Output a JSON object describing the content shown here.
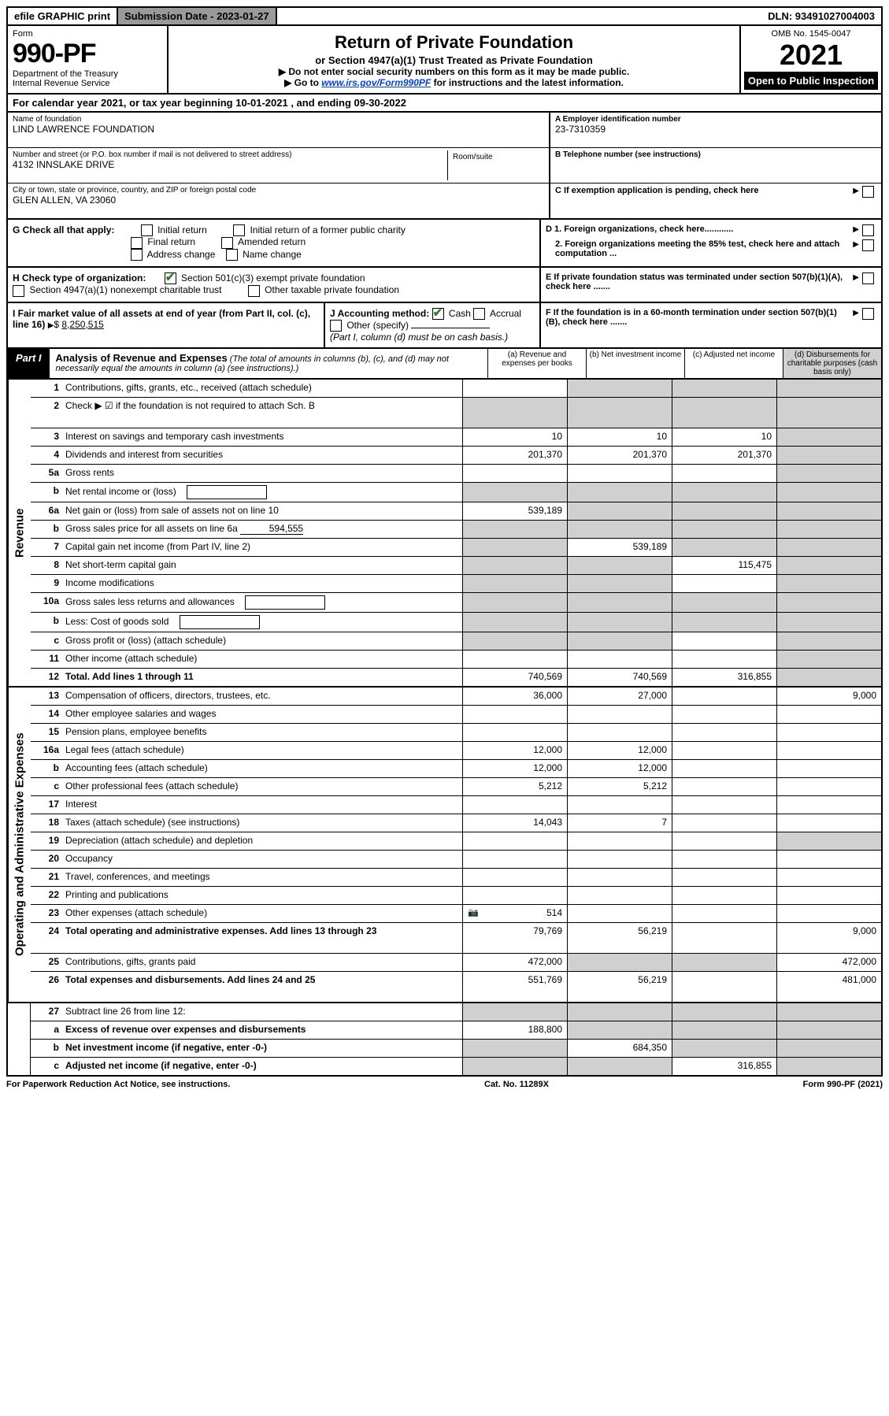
{
  "top_bar": {
    "efile": "efile GRAPHIC print",
    "submission_label": "Submission Date - 2023-01-27",
    "dln": "DLN: 93491027004003"
  },
  "header": {
    "form_word": "Form",
    "form_number": "990-PF",
    "dept": "Department of the Treasury",
    "irs": "Internal Revenue Service",
    "title": "Return of Private Foundation",
    "subtitle": "or Section 4947(a)(1) Trust Treated as Private Foundation",
    "warn": "▶ Do not enter social security numbers on this form as it may be made public.",
    "goto_prefix": "▶ Go to ",
    "goto_link": "www.irs.gov/Form990PF",
    "goto_suffix": " for instructions and the latest information.",
    "omb": "OMB No. 1545-0047",
    "year": "2021",
    "open": "Open to Public Inspection"
  },
  "calendar": "For calendar year 2021, or tax year beginning 10-01-2021               , and ending 09-30-2022",
  "info": {
    "name_label": "Name of foundation",
    "name": "LIND LAWRENCE FOUNDATION",
    "addr_label": "Number and street (or P.O. box number if mail is not delivered to street address)",
    "addr": "4132 INNSLAKE DRIVE",
    "room_label": "Room/suite",
    "city_label": "City or town, state or province, country, and ZIP or foreign postal code",
    "city": "GLEN ALLEN, VA  23060",
    "ein_label": "A Employer identification number",
    "ein": "23-7310359",
    "phone_label": "B Telephone number (see instructions)",
    "c_label": "C If exemption application is pending, check here",
    "d1": "D 1. Foreign organizations, check here............",
    "d2": "2. Foreign organizations meeting the 85% test, check here and attach computation ...",
    "e_label": "E  If private foundation status was terminated under section 507(b)(1)(A), check here .......",
    "f_label": "F  If the foundation is in a 60-month termination under section 507(b)(1)(B), check here ......."
  },
  "checks": {
    "g_label": "G Check all that apply:",
    "g_opts": [
      "Initial return",
      "Initial return of a former public charity",
      "Final return",
      "Amended return",
      "Address change",
      "Name change"
    ],
    "h_label": "H Check type of organization:",
    "h1": "Section 501(c)(3) exempt private foundation",
    "h2": "Section 4947(a)(1) nonexempt charitable trust",
    "h3": "Other taxable private foundation",
    "i_label": "I Fair market value of all assets at end of year (from Part II, col. (c), line 16)",
    "i_value": "8,250,515",
    "j_label": "J Accounting method:",
    "j_cash": "Cash",
    "j_accrual": "Accrual",
    "j_other": "Other (specify)",
    "j_note": "(Part I, column (d) must be on cash basis.)"
  },
  "part1": {
    "label": "Part I",
    "title": "Analysis of Revenue and Expenses",
    "title_note": "(The total of amounts in columns (b), (c), and (d) may not necessarily equal the amounts in column (a) (see instructions).)",
    "col_a": "(a)   Revenue and expenses per books",
    "col_b": "(b)   Net investment income",
    "col_c": "(c)   Adjusted net income",
    "col_d": "(d)   Disbursements for charitable purposes (cash basis only)"
  },
  "side_labels": {
    "revenue": "Revenue",
    "expenses": "Operating and Administrative Expenses"
  },
  "rows": [
    {
      "n": "1",
      "d": "Contributions, gifts, grants, etc., received (attach schedule)",
      "a": "",
      "b": "shaded",
      "c": "shaded",
      "dd": "shaded"
    },
    {
      "n": "2",
      "d": "Check ▶ ☑ if the foundation is not required to attach Sch. B",
      "a": "shaded",
      "b": "shaded",
      "c": "shaded",
      "dd": "shaded",
      "tall": true
    },
    {
      "n": "3",
      "d": "Interest on savings and temporary cash investments",
      "a": "10",
      "b": "10",
      "c": "10",
      "dd": "shaded"
    },
    {
      "n": "4",
      "d": "Dividends and interest from securities",
      "a": "201,370",
      "b": "201,370",
      "c": "201,370",
      "dd": "shaded"
    },
    {
      "n": "5a",
      "d": "Gross rents",
      "a": "",
      "b": "",
      "c": "",
      "dd": "shaded"
    },
    {
      "n": "b",
      "d": "Net rental income or (loss)",
      "a": "shaded",
      "b": "shaded",
      "c": "shaded",
      "dd": "shaded",
      "inline": true
    },
    {
      "n": "6a",
      "d": "Net gain or (loss) from sale of assets not on line 10",
      "a": "539,189",
      "b": "shaded",
      "c": "shaded",
      "dd": "shaded"
    },
    {
      "n": "b",
      "d": "Gross sales price for all assets on line 6a",
      "a": "shaded",
      "b": "shaded",
      "c": "shaded",
      "dd": "shaded",
      "inline_val": "594,555"
    },
    {
      "n": "7",
      "d": "Capital gain net income (from Part IV, line 2)",
      "a": "shaded",
      "b": "539,189",
      "c": "shaded",
      "dd": "shaded"
    },
    {
      "n": "8",
      "d": "Net short-term capital gain",
      "a": "shaded",
      "b": "shaded",
      "c": "115,475",
      "dd": "shaded"
    },
    {
      "n": "9",
      "d": "Income modifications",
      "a": "shaded",
      "b": "shaded",
      "c": "",
      "dd": "shaded"
    },
    {
      "n": "10a",
      "d": "Gross sales less returns and allowances",
      "a": "shaded",
      "b": "shaded",
      "c": "shaded",
      "dd": "shaded",
      "inline": true
    },
    {
      "n": "b",
      "d": "Less: Cost of goods sold",
      "a": "shaded",
      "b": "shaded",
      "c": "shaded",
      "dd": "shaded",
      "inline": true
    },
    {
      "n": "c",
      "d": "Gross profit or (loss) (attach schedule)",
      "a": "shaded",
      "b": "shaded",
      "c": "",
      "dd": "shaded"
    },
    {
      "n": "11",
      "d": "Other income (attach schedule)",
      "a": "",
      "b": "",
      "c": "",
      "dd": "shaded"
    },
    {
      "n": "12",
      "d": "Total. Add lines 1 through 11",
      "a": "740,569",
      "b": "740,569",
      "c": "316,855",
      "dd": "shaded",
      "bold": true
    }
  ],
  "exp_rows": [
    {
      "n": "13",
      "d": "Compensation of officers, directors, trustees, etc.",
      "a": "36,000",
      "b": "27,000",
      "c": "",
      "dd": "9,000"
    },
    {
      "n": "14",
      "d": "Other employee salaries and wages",
      "a": "",
      "b": "",
      "c": "",
      "dd": ""
    },
    {
      "n": "15",
      "d": "Pension plans, employee benefits",
      "a": "",
      "b": "",
      "c": "",
      "dd": ""
    },
    {
      "n": "16a",
      "d": "Legal fees (attach schedule)",
      "a": "12,000",
      "b": "12,000",
      "c": "",
      "dd": ""
    },
    {
      "n": "b",
      "d": "Accounting fees (attach schedule)",
      "a": "12,000",
      "b": "12,000",
      "c": "",
      "dd": ""
    },
    {
      "n": "c",
      "d": "Other professional fees (attach schedule)",
      "a": "5,212",
      "b": "5,212",
      "c": "",
      "dd": ""
    },
    {
      "n": "17",
      "d": "Interest",
      "a": "",
      "b": "",
      "c": "",
      "dd": ""
    },
    {
      "n": "18",
      "d": "Taxes (attach schedule) (see instructions)",
      "a": "14,043",
      "b": "7",
      "c": "",
      "dd": ""
    },
    {
      "n": "19",
      "d": "Depreciation (attach schedule) and depletion",
      "a": "",
      "b": "",
      "c": "",
      "dd": "shaded"
    },
    {
      "n": "20",
      "d": "Occupancy",
      "a": "",
      "b": "",
      "c": "",
      "dd": ""
    },
    {
      "n": "21",
      "d": "Travel, conferences, and meetings",
      "a": "",
      "b": "",
      "c": "",
      "dd": ""
    },
    {
      "n": "22",
      "d": "Printing and publications",
      "a": "",
      "b": "",
      "c": "",
      "dd": ""
    },
    {
      "n": "23",
      "d": "Other expenses (attach schedule)",
      "a": "514",
      "b": "",
      "c": "",
      "dd": "",
      "camera": true
    },
    {
      "n": "24",
      "d": "Total operating and administrative expenses. Add lines 13 through 23",
      "a": "79,769",
      "b": "56,219",
      "c": "",
      "dd": "9,000",
      "bold": true,
      "tall": true
    },
    {
      "n": "25",
      "d": "Contributions, gifts, grants paid",
      "a": "472,000",
      "b": "shaded",
      "c": "shaded",
      "dd": "472,000"
    },
    {
      "n": "26",
      "d": "Total expenses and disbursements. Add lines 24 and 25",
      "a": "551,769",
      "b": "56,219",
      "c": "",
      "dd": "481,000",
      "bold": true,
      "tall": true
    }
  ],
  "final_rows": [
    {
      "n": "27",
      "d": "Subtract line 26 from line 12:",
      "a": "shaded",
      "b": "shaded",
      "c": "shaded",
      "dd": "shaded"
    },
    {
      "n": "a",
      "d": "Excess of revenue over expenses and disbursements",
      "a": "188,800",
      "b": "shaded",
      "c": "shaded",
      "dd": "shaded",
      "bold": true
    },
    {
      "n": "b",
      "d": "Net investment income (if negative, enter -0-)",
      "a": "shaded",
      "b": "684,350",
      "c": "shaded",
      "dd": "shaded",
      "bold": true
    },
    {
      "n": "c",
      "d": "Adjusted net income (if negative, enter -0-)",
      "a": "shaded",
      "b": "shaded",
      "c": "316,855",
      "dd": "shaded",
      "bold": true
    }
  ],
  "footer": {
    "left": "For Paperwork Reduction Act Notice, see instructions.",
    "center": "Cat. No. 11289X",
    "right": "Form 990-PF (2021)"
  }
}
